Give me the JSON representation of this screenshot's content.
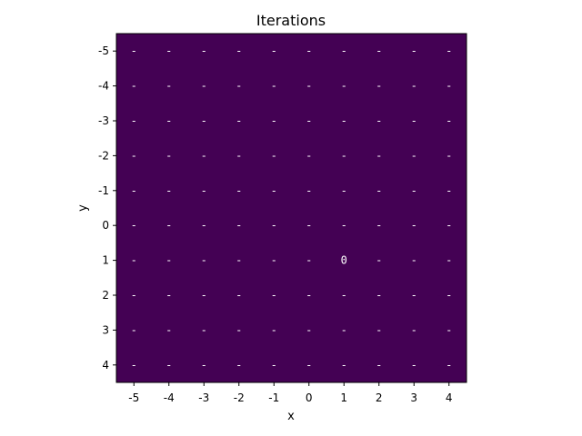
{
  "chart_data": {
    "type": "heatmap",
    "title": "Iterations",
    "xlabel": "x",
    "ylabel": "y",
    "x_ticks": [
      "-5",
      "-4",
      "-3",
      "-2",
      "-1",
      "0",
      "1",
      "2",
      "3",
      "4"
    ],
    "y_ticks": [
      "-5",
      "-4",
      "-3",
      "-2",
      "-1",
      "0",
      "1",
      "2",
      "3",
      "4"
    ],
    "cell_color": "#440154",
    "empty_cell_label": "-",
    "annotated_cells": [
      {
        "x": 1,
        "y": 1,
        "label": "0"
      }
    ],
    "grid": false,
    "legend": "none"
  }
}
